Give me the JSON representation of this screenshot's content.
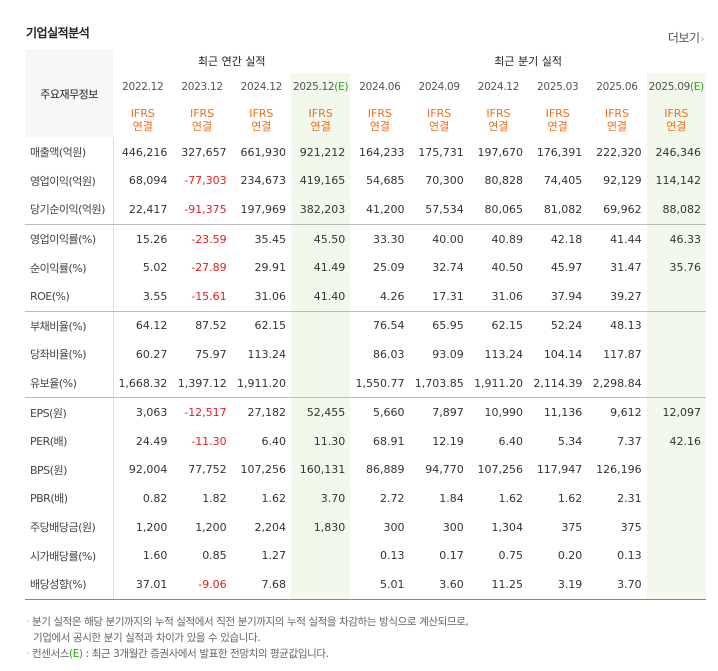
{
  "title": "기업실적분석",
  "more_label": "더보기",
  "header": {
    "corner": "주요재무정보",
    "annual_group": "최근 연간 실적",
    "quarter_group": "최근 분기 실적",
    "annual_periods": [
      "2022.12",
      "2023.12",
      "2024.12",
      "2025.12"
    ],
    "annual_est_suffix": "(E)",
    "quarter_periods": [
      "2024.06",
      "2024.09",
      "2024.12",
      "2025.03",
      "2025.06",
      "2025.09"
    ],
    "quarter_est_suffix": "(E)",
    "basis_line1": "IFRS",
    "basis_line2": "연결"
  },
  "rows": [
    {
      "label": "매출액(억원)",
      "values": [
        "446,216",
        "327,657",
        "661,930",
        "921,212",
        "164,233",
        "175,731",
        "197,670",
        "176,391",
        "222,320",
        "246,346"
      ]
    },
    {
      "label": "영업이익(억원)",
      "values": [
        "68,094",
        "-77,303",
        "234,673",
        "419,165",
        "54,685",
        "70,300",
        "80,828",
        "74,405",
        "92,129",
        "114,142"
      ]
    },
    {
      "label": "당기순이익(억원)",
      "values": [
        "22,417",
        "-91,375",
        "197,969",
        "382,203",
        "41,200",
        "57,534",
        "80,065",
        "81,082",
        "69,962",
        "88,082"
      ]
    },
    {
      "label": "영업이익률(%)",
      "values": [
        "15.26",
        "-23.59",
        "35.45",
        "45.50",
        "33.30",
        "40.00",
        "40.89",
        "42.18",
        "41.44",
        "46.33"
      ]
    },
    {
      "label": "순이익률(%)",
      "values": [
        "5.02",
        "-27.89",
        "29.91",
        "41.49",
        "25.09",
        "32.74",
        "40.50",
        "45.97",
        "31.47",
        "35.76"
      ]
    },
    {
      "label": "ROE(%)",
      "values": [
        "3.55",
        "-15.61",
        "31.06",
        "41.40",
        "4.26",
        "17.31",
        "31.06",
        "37.94",
        "39.27",
        ""
      ]
    },
    {
      "label": "부채비율(%)",
      "values": [
        "64.12",
        "87.52",
        "62.15",
        "",
        "76.54",
        "65.95",
        "62.15",
        "52.24",
        "48.13",
        ""
      ]
    },
    {
      "label": "당좌비율(%)",
      "values": [
        "60.27",
        "75.97",
        "113.24",
        "",
        "86.03",
        "93.09",
        "113.24",
        "104.14",
        "117.87",
        ""
      ]
    },
    {
      "label": "유보율(%)",
      "values": [
        "1,668.32",
        "1,397.12",
        "1,911.20",
        "",
        "1,550.77",
        "1,703.85",
        "1,911.20",
        "2,114.39",
        "2,298.84",
        ""
      ]
    },
    {
      "label": "EPS(원)",
      "values": [
        "3,063",
        "-12,517",
        "27,182",
        "52,455",
        "5,660",
        "7,897",
        "10,990",
        "11,136",
        "9,612",
        "12,097"
      ]
    },
    {
      "label": "PER(배)",
      "values": [
        "24.49",
        "-11.30",
        "6.40",
        "11.30",
        "68.91",
        "12.19",
        "6.40",
        "5.34",
        "7.37",
        "42.16"
      ]
    },
    {
      "label": "BPS(원)",
      "values": [
        "92,004",
        "77,752",
        "107,256",
        "160,131",
        "86,889",
        "94,770",
        "107,256",
        "117,947",
        "126,196",
        ""
      ]
    },
    {
      "label": "PBR(배)",
      "values": [
        "0.82",
        "1.82",
        "1.62",
        "3.70",
        "2.72",
        "1.84",
        "1.62",
        "1.62",
        "2.31",
        ""
      ]
    },
    {
      "label": "주당배당금(원)",
      "values": [
        "1,200",
        "1,200",
        "2,204",
        "1,830",
        "300",
        "300",
        "1,304",
        "375",
        "375",
        ""
      ]
    },
    {
      "label": "시가배당률(%)",
      "values": [
        "1.60",
        "0.85",
        "1.27",
        "",
        "0.13",
        "0.17",
        "0.75",
        "0.20",
        "0.13",
        ""
      ]
    },
    {
      "label": "배당성향(%)",
      "values": [
        "37.01",
        "-9.06",
        "7.68",
        "",
        "5.01",
        "3.60",
        "11.25",
        "3.19",
        "3.70",
        ""
      ]
    }
  ],
  "group_breaks_after": [
    2,
    5,
    8
  ],
  "colors": {
    "negative": "#e02020",
    "basis": "#f06d1b",
    "estimate_bg": "#f3f8ec",
    "estimate_mark": "#2fa31c"
  },
  "notes": {
    "line1": "분기 실적은 해당 분기까지의 누적 실적에서 직전 분기까지의 누적 실적을 차감하는 방식으로 계산되므로,",
    "line2": "기업에서 공시한 분기 실적과 차이가 있을 수 있습니다.",
    "line3_prefix": "컨센서스",
    "line3_mark": "(E)",
    "line3_rest": " : 최근 3개월간 증권사에서 발표한 전망치의 평균값입니다."
  }
}
